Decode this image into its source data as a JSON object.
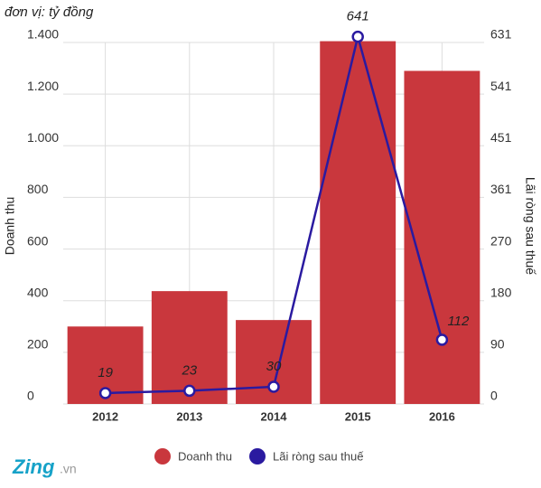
{
  "chart_data": {
    "type": "combo",
    "subtitle": "đơn vị: tỷ đồng",
    "y_label": "Doanh thu",
    "y2_label": "Lãi ròng sau thuế",
    "categories": [
      "2012",
      "2013",
      "2014",
      "2015",
      "2016"
    ],
    "series": [
      {
        "name": "Doanh thu",
        "type": "bar",
        "color": "#c9373d",
        "values": [
          300,
          437,
          325,
          1405,
          1290
        ]
      },
      {
        "name": "Lãi ròng sau thuế",
        "type": "line",
        "axis": "y2",
        "color": "#2a1aa0",
        "values": [
          19,
          23,
          30,
          641,
          112
        ]
      }
    ],
    "ylim": [
      0,
      1400
    ],
    "yticks": [
      0,
      200,
      400,
      600,
      800,
      {
        "value": 1000,
        "label": "1.000"
      },
      {
        "value": 1200,
        "label": "1.200"
      },
      {
        "value": 1400,
        "label": "1.400"
      }
    ],
    "y2lim": [
      0,
      631
    ],
    "y2ticks": [
      0,
      90,
      180,
      270,
      361,
      451,
      541,
      631
    ],
    "grid": true,
    "legend": "bottom",
    "logo": {
      "brand": "Zing",
      "suffix": ".vn"
    }
  }
}
